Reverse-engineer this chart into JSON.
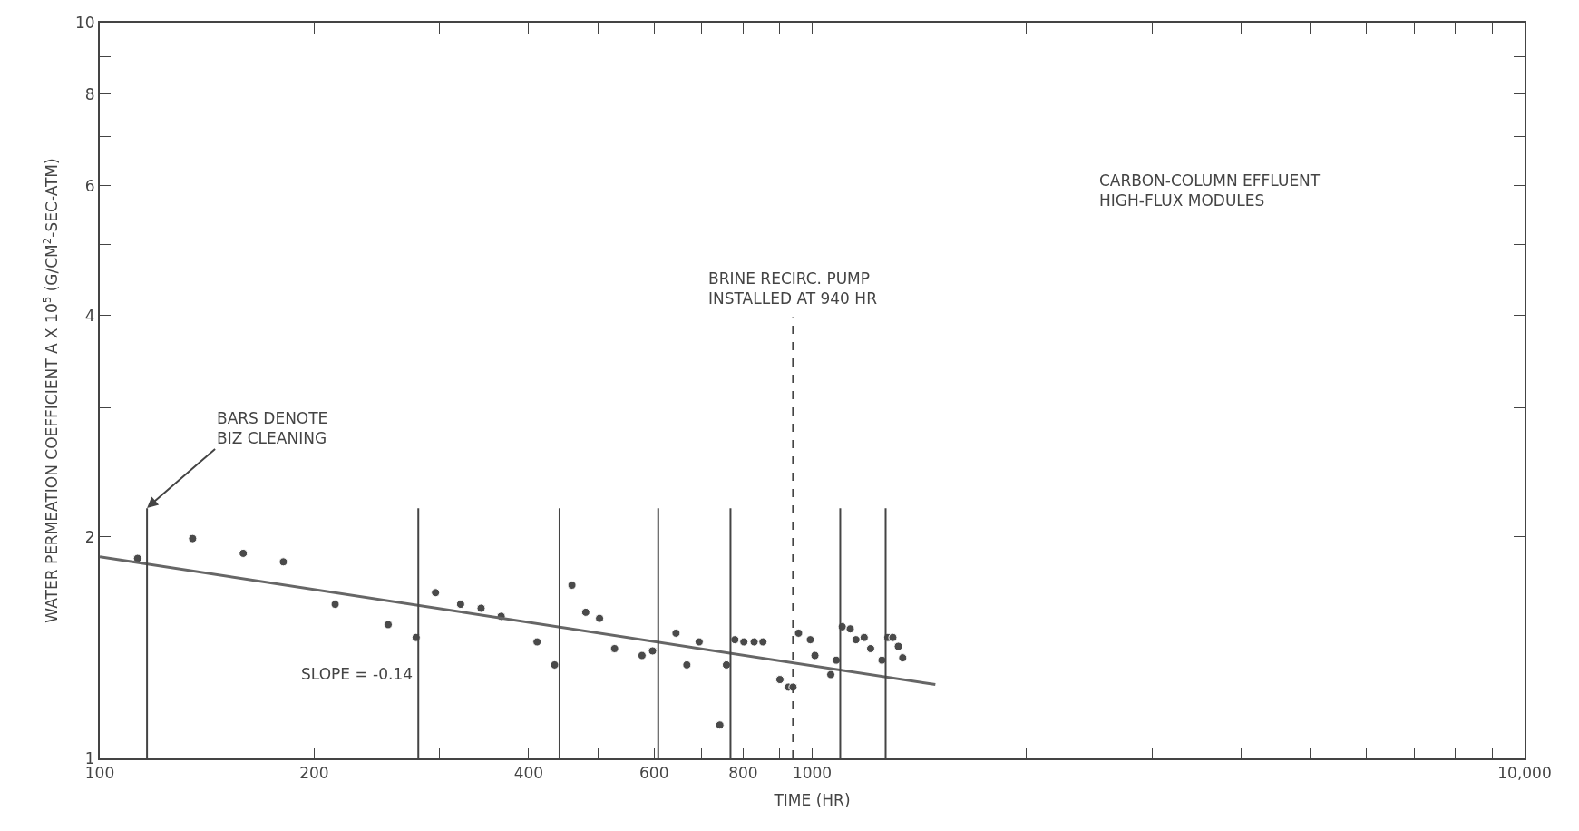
{
  "chart_data": {
    "type": "scatter",
    "xlabel": "TIME (HR)",
    "ylabel": "WATER PERMEATION COEFFICIENT A X 10$^{5}$ (G/CM$^{2}$-SEC-ATM)",
    "log": "xy",
    "xlim": [
      100,
      10000
    ],
    "xticks": [
      100,
      200,
      {
        "value": 300,
        "label": null
      },
      400,
      {
        "value": 500,
        "label": null
      },
      600,
      {
        "value": 700,
        "label": null
      },
      800,
      {
        "value": 900,
        "label": null
      },
      1000,
      {
        "value": 2000,
        "label": null
      },
      {
        "value": 3000,
        "label": null
      },
      {
        "value": 4000,
        "label": null
      },
      {
        "value": 5000,
        "label": null
      },
      {
        "value": 6000,
        "label": null
      },
      {
        "value": 7000,
        "label": null
      },
      {
        "value": 8000,
        "label": null
      },
      {
        "value": 9000,
        "label": null
      },
      {
        "value": 10000,
        "label": "10,000"
      }
    ],
    "ylim": [
      1,
      10
    ],
    "yticks": [
      1,
      2,
      {
        "value": 3,
        "label": null
      },
      4,
      {
        "value": 5,
        "label": null
      },
      6,
      {
        "value": 7,
        "label": null
      },
      8,
      {
        "value": 9,
        "label": null
      },
      10
    ],
    "series": [
      {
        "marker": "circle",
        "color": "#4a4a4a",
        "x": [
          113,
          135,
          159,
          181,
          214,
          254,
          278,
          296,
          321,
          343,
          366,
          411,
          435,
          460,
          481,
          503,
          528,
          577,
          597,
          644,
          667,
          694,
          742,
          758,
          779,
          802,
          829,
          853,
          901,
          926,
          940,
          957,
          994,
          1009,
          1062,
          1081,
          1102,
          1131,
          1152,
          1183,
          1208,
          1253,
          1277,
          1298,
          1321,
          1340
        ],
        "values": [
          1.87,
          1.99,
          1.9,
          1.85,
          1.62,
          1.52,
          1.46,
          1.68,
          1.62,
          1.6,
          1.56,
          1.44,
          1.34,
          1.72,
          1.58,
          1.55,
          1.41,
          1.38,
          1.4,
          1.48,
          1.34,
          1.44,
          1.11,
          1.34,
          1.45,
          1.44,
          1.44,
          1.44,
          1.28,
          1.25,
          1.25,
          1.48,
          1.45,
          1.38,
          1.3,
          1.36,
          1.51,
          1.5,
          1.45,
          1.46,
          1.41,
          1.36,
          1.46,
          1.46,
          1.42,
          1.37
        ]
      },
      {
        "type": "line",
        "marker": "none",
        "color": "#666666",
        "x": [
          100,
          1489
        ],
        "values": [
          1.88,
          1.26
        ]
      }
    ],
    "ref_lines": [
      {
        "axis": "x",
        "value": 116.5,
        "color": "#444444"
      },
      {
        "axis": "x",
        "value": 280,
        "color": "#444444"
      },
      {
        "axis": "x",
        "value": 442,
        "color": "#444444"
      },
      {
        "axis": "x",
        "value": 608,
        "color": "#444444"
      },
      {
        "axis": "x",
        "value": 768,
        "color": "#444444"
      },
      {
        "axis": "x",
        "value": 940,
        "color": "#444444",
        "line_style": "dashed",
        "label": "BRINE RECIRC. PUMP\nINSTALLED AT 940 HR"
      },
      {
        "axis": "x",
        "value": 1095,
        "color": "#444444"
      },
      {
        "axis": "x",
        "value": 1268,
        "color": "#444444"
      }
    ],
    "annotations": [
      {
        "text": "BARS DENOTE\nBIZ CLEANING",
        "x": 116.5,
        "y": 2.19
      },
      "SLOPE = -0.14",
      "CARBON-COLUMN EFFLUENT\nHIGH-FLUX MODULES"
    ]
  }
}
